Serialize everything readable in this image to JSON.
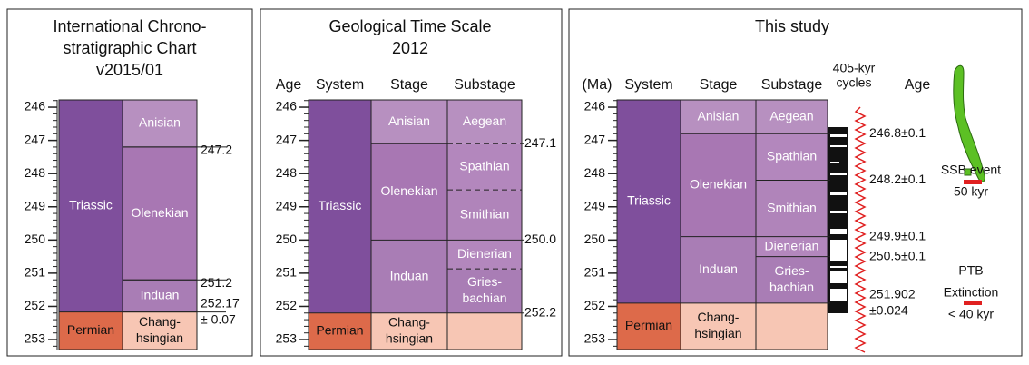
{
  "panels": [
    {
      "title": [
        "International Chrono-",
        "stratigraphic Chart",
        "v2015/01"
      ],
      "ylim": [
        245.78,
        253.3
      ],
      "yticks": [
        246,
        247,
        248,
        249,
        250,
        251,
        252,
        253
      ],
      "columns": [
        {
          "units": [
            {
              "label": "Triassic",
              "base": 252.17,
              "color": "#7f4f9c"
            },
            {
              "label": "Permian",
              "color": "#dd6a4a",
              "text_color": "#111"
            }
          ]
        },
        {
          "units": [
            {
              "label": "Anisian",
              "base": 247.2,
              "color": "#b790c0"
            },
            {
              "label": "Olenekian",
              "base": 251.2,
              "color": "#a877b3"
            },
            {
              "label": "Induan",
              "base": 252.17,
              "color": "#a97db5"
            },
            {
              "label": [
                "Chang-",
                "hsingian"
              ],
              "color": "#f7c6b4",
              "text_color": "#111"
            }
          ]
        }
      ],
      "boundaries": [
        {
          "value": 247.2,
          "label": "247.2"
        },
        {
          "value": 251.2,
          "label": "251.2"
        },
        {
          "value": 252.17,
          "label": [
            "252.17",
            "± 0.07"
          ]
        }
      ]
    },
    {
      "title": [
        "Geological Time Scale",
        "2012"
      ],
      "axis_label": "Age",
      "ylim": [
        245.78,
        253.3
      ],
      "yticks": [
        246,
        247,
        248,
        249,
        250,
        251,
        252,
        253
      ],
      "columns": [
        {
          "header": "System",
          "units": [
            {
              "label": "Triassic",
              "base": 252.2,
              "color": "#7f4f9c"
            },
            {
              "label": "Permian",
              "color": "#dd6a4a",
              "text_color": "#111"
            }
          ]
        },
        {
          "header": "Stage",
          "units": [
            {
              "label": "Anisian",
              "base": 247.1,
              "color": "#b790c0"
            },
            {
              "label": "Olenekian",
              "base": 250.0,
              "color": "#a877b3"
            },
            {
              "label": "Induan",
              "base": 252.2,
              "color": "#a97db5"
            },
            {
              "label": [
                "Chang-",
                "hsingian"
              ],
              "color": "#f7c6b4",
              "text_color": "#111"
            }
          ]
        },
        {
          "header": "Substage",
          "units": [
            {
              "label": "Aegean",
              "base": 247.1,
              "color": "#b790c0"
            },
            {
              "label": "Spathian",
              "base": 248.49,
              "color": "#b387bd",
              "dashed": true
            },
            {
              "label": "Smithian",
              "base": 250.0,
              "color": "#b084ba",
              "dashed": true
            },
            {
              "label": "Dienerian",
              "base": 250.87,
              "color": "#b387bd"
            },
            {
              "label": [
                "Gries-",
                "bachian"
              ],
              "base": 252.2,
              "color": "#a97db5",
              "dashed": true
            },
            {
              "label": null,
              "color": "#f7c6b4"
            }
          ]
        }
      ],
      "boundaries": [
        {
          "value": 247.1,
          "label": "247.1"
        },
        {
          "value": 250.0,
          "label": "250.0"
        },
        {
          "value": 252.2,
          "label": "252.2"
        }
      ]
    },
    {
      "title": [
        "This study"
      ],
      "axis_label": "(Ma)",
      "cycles_header": [
        "405-kyr",
        "cycles"
      ],
      "age_header": "Age",
      "ylim": [
        245.78,
        253.3
      ],
      "yticks": [
        246,
        247,
        248,
        249,
        250,
        251,
        252,
        253
      ],
      "columns": [
        {
          "header": "System",
          "units": [
            {
              "label": "Triassic",
              "base": 251.902,
              "color": "#7f4f9c"
            },
            {
              "label": "Permian",
              "color": "#dd6a4a",
              "text_color": "#111"
            }
          ]
        },
        {
          "header": "Stage",
          "units": [
            {
              "label": "Anisian",
              "base": 246.8,
              "color": "#b790c0"
            },
            {
              "label": "Olenekian",
              "base": 249.9,
              "color": "#a877b3"
            },
            {
              "label": "Induan",
              "base": 251.902,
              "color": "#a97db5"
            },
            {
              "label": [
                "Chang-",
                "hsingian"
              ],
              "color": "#f7c6b4",
              "text_color": "#111"
            }
          ]
        },
        {
          "header": "Substage",
          "units": [
            {
              "label": "Aegean",
              "base": 246.8,
              "color": "#b790c0"
            },
            {
              "label": "Spathian",
              "base": 248.2,
              "color": "#b387bd"
            },
            {
              "label": "Smithian",
              "base": 249.9,
              "color": "#b084ba"
            },
            {
              "label": "Dienerian",
              "base": 250.5,
              "color": "#b387bd"
            },
            {
              "label": [
                "Gries-",
                "bachian"
              ],
              "base": 251.902,
              "color": "#a97db5"
            },
            {
              "label": null,
              "color": "#f7c6b4"
            }
          ]
        }
      ],
      "boundaries": [
        {
          "value": 246.8,
          "label": "246.8±0.1"
        },
        {
          "value": 248.2,
          "label": "248.2±0.1"
        },
        {
          "value": 249.9,
          "label": "249.9±0.1"
        },
        {
          "value": 250.5,
          "label": "250.5±0.1"
        },
        {
          "value": 251.902,
          "label": [
            "251.902",
            "±0.024"
          ]
        }
      ],
      "notes": {
        "ssb": [
          "SSB event",
          "50 kyr"
        ],
        "ptb": [
          "PTB",
          "Extinction",
          "< 40 kyr"
        ]
      }
    }
  ]
}
